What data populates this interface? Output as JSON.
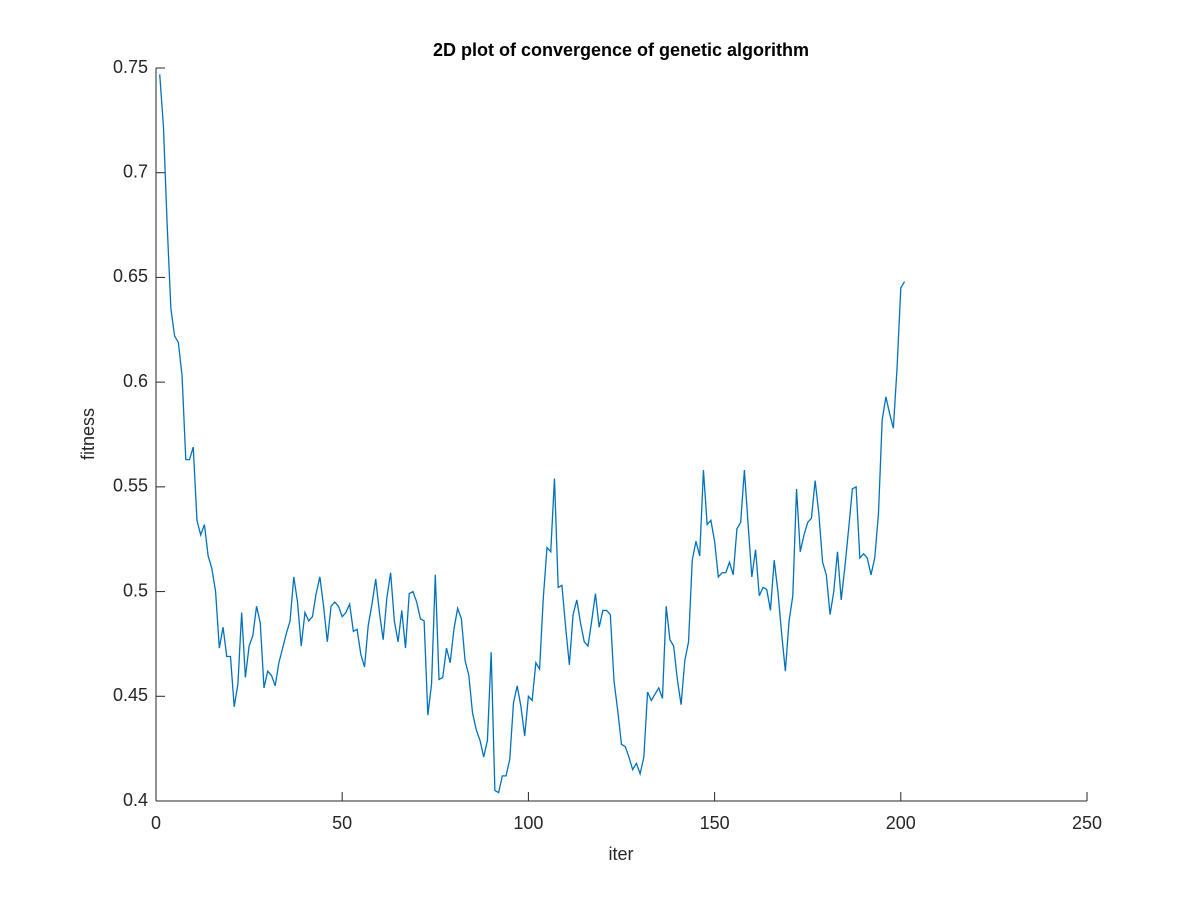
{
  "chart_data": {
    "type": "line",
    "title": "2D plot of  convergence of genetic algorithm",
    "x_label": "iter",
    "y_label": "fitness",
    "xlim": [
      0,
      250
    ],
    "xticks": [
      0,
      50,
      100,
      150,
      200,
      250
    ],
    "ylim": [
      0.4,
      0.75
    ],
    "yticks": [
      0.4,
      0.45,
      0.5,
      0.55,
      0.6,
      0.65,
      0.7,
      0.75
    ],
    "grid": false,
    "x": [
      1,
      2,
      3,
      4,
      5,
      6,
      7,
      8,
      9,
      10,
      11,
      12,
      13,
      14,
      15,
      16,
      17,
      18,
      19,
      20,
      21,
      22,
      23,
      24,
      25,
      26,
      27,
      28,
      29,
      30,
      31,
      32,
      33,
      34,
      35,
      36,
      37,
      38,
      39,
      40,
      41,
      42,
      43,
      44,
      45,
      46,
      47,
      48,
      49,
      50,
      51,
      52,
      53,
      54,
      55,
      56,
      57,
      58,
      59,
      60,
      61,
      62,
      63,
      64,
      65,
      66,
      67,
      68,
      69,
      70,
      71,
      72,
      73,
      74,
      75,
      76,
      77,
      78,
      79,
      80,
      81,
      82,
      83,
      84,
      85,
      86,
      87,
      88,
      89,
      90,
      91,
      92,
      93,
      94,
      95,
      96,
      97,
      98,
      99,
      100,
      101,
      102,
      103,
      104,
      105,
      106,
      107,
      108,
      109,
      110,
      111,
      112,
      113,
      114,
      115,
      116,
      117,
      118,
      119,
      120,
      121,
      122,
      123,
      124,
      125,
      126,
      127,
      128,
      129,
      130,
      131,
      132,
      133,
      134,
      135,
      136,
      137,
      138,
      139,
      140,
      141,
      142,
      143,
      144,
      145,
      146,
      147,
      148,
      149,
      150,
      151,
      152,
      153,
      154,
      155,
      156,
      157,
      158,
      159,
      160,
      161,
      162,
      163,
      164,
      165,
      166,
      167,
      168,
      169,
      170,
      171,
      172,
      173,
      174,
      175,
      176,
      177,
      178,
      179,
      180,
      181,
      182,
      183,
      184,
      185,
      186,
      187,
      188,
      189,
      190,
      191,
      192,
      193,
      194,
      195,
      196,
      197,
      198,
      199,
      200,
      201
    ],
    "series": [
      {
        "color": "#0072bd",
        "values": [
          0.747,
          0.722,
          0.675,
          0.635,
          0.622,
          0.619,
          0.603,
          0.563,
          0.563,
          0.569,
          0.534,
          0.527,
          0.532,
          0.517,
          0.511,
          0.5,
          0.473,
          0.483,
          0.469,
          0.469,
          0.445,
          0.456,
          0.49,
          0.459,
          0.474,
          0.479,
          0.493,
          0.485,
          0.454,
          0.462,
          0.46,
          0.455,
          0.466,
          0.473,
          0.48,
          0.486,
          0.507,
          0.495,
          0.474,
          0.49,
          0.486,
          0.488,
          0.499,
          0.507,
          0.493,
          0.476,
          0.493,
          0.495,
          0.493,
          0.488,
          0.49,
          0.494,
          0.481,
          0.482,
          0.47,
          0.464,
          0.484,
          0.494,
          0.506,
          0.49,
          0.477,
          0.497,
          0.509,
          0.486,
          0.476,
          0.491,
          0.473,
          0.499,
          0.5,
          0.495,
          0.487,
          0.486,
          0.441,
          0.456,
          0.508,
          0.458,
          0.459,
          0.473,
          0.466,
          0.482,
          0.492,
          0.487,
          0.467,
          0.46,
          0.442,
          0.434,
          0.429,
          0.421,
          0.429,
          0.471,
          0.405,
          0.404,
          0.412,
          0.412,
          0.42,
          0.447,
          0.455,
          0.445,
          0.431,
          0.45,
          0.448,
          0.466,
          0.463,
          0.497,
          0.521,
          0.519,
          0.554,
          0.502,
          0.503,
          0.483,
          0.465,
          0.489,
          0.496,
          0.485,
          0.476,
          0.474,
          0.486,
          0.499,
          0.483,
          0.491,
          0.491,
          0.489,
          0.457,
          0.443,
          0.427,
          0.426,
          0.421,
          0.415,
          0.418,
          0.413,
          0.421,
          0.452,
          0.448,
          0.451,
          0.454,
          0.449,
          0.493,
          0.477,
          0.474,
          0.458,
          0.446,
          0.467,
          0.476,
          0.515,
          0.524,
          0.517,
          0.558,
          0.532,
          0.534,
          0.524,
          0.507,
          0.509,
          0.509,
          0.514,
          0.508,
          0.53,
          0.533,
          0.558,
          0.532,
          0.507,
          0.52,
          0.498,
          0.502,
          0.501,
          0.491,
          0.515,
          0.5,
          0.48,
          0.462,
          0.486,
          0.498,
          0.549,
          0.519,
          0.527,
          0.533,
          0.535,
          0.553,
          0.537,
          0.514,
          0.508,
          0.489,
          0.5,
          0.519,
          0.496,
          0.512,
          0.53,
          0.549,
          0.55,
          0.516,
          0.518,
          0.516,
          0.508,
          0.516,
          0.537,
          0.582,
          0.593,
          0.585,
          0.578,
          0.607,
          0.645,
          0.648
        ]
      }
    ]
  }
}
